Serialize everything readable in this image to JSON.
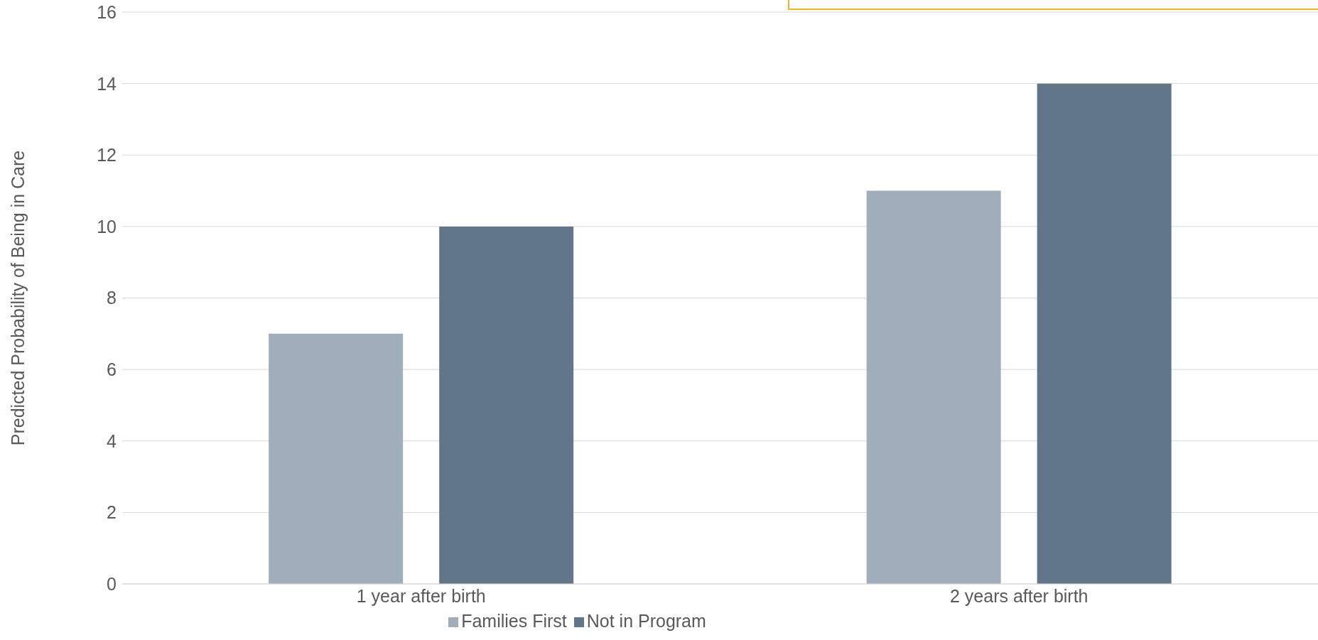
{
  "chart_data": {
    "type": "bar",
    "ylabel": "Predicted Probability of Being in Care",
    "categories": [
      "1 year after birth",
      "2 years after birth"
    ],
    "series": [
      {
        "name": "Families First",
        "color": "#a0adba",
        "values": [
          7,
          11
        ]
      },
      {
        "name": "Not in Program",
        "color": "#617789",
        "values": [
          10,
          14
        ]
      }
    ],
    "ylim": [
      0,
      16
    ],
    "yticks": [
      0,
      2,
      4,
      6,
      8,
      10,
      12,
      14,
      16
    ],
    "grid": "y",
    "legend": "bottom"
  }
}
